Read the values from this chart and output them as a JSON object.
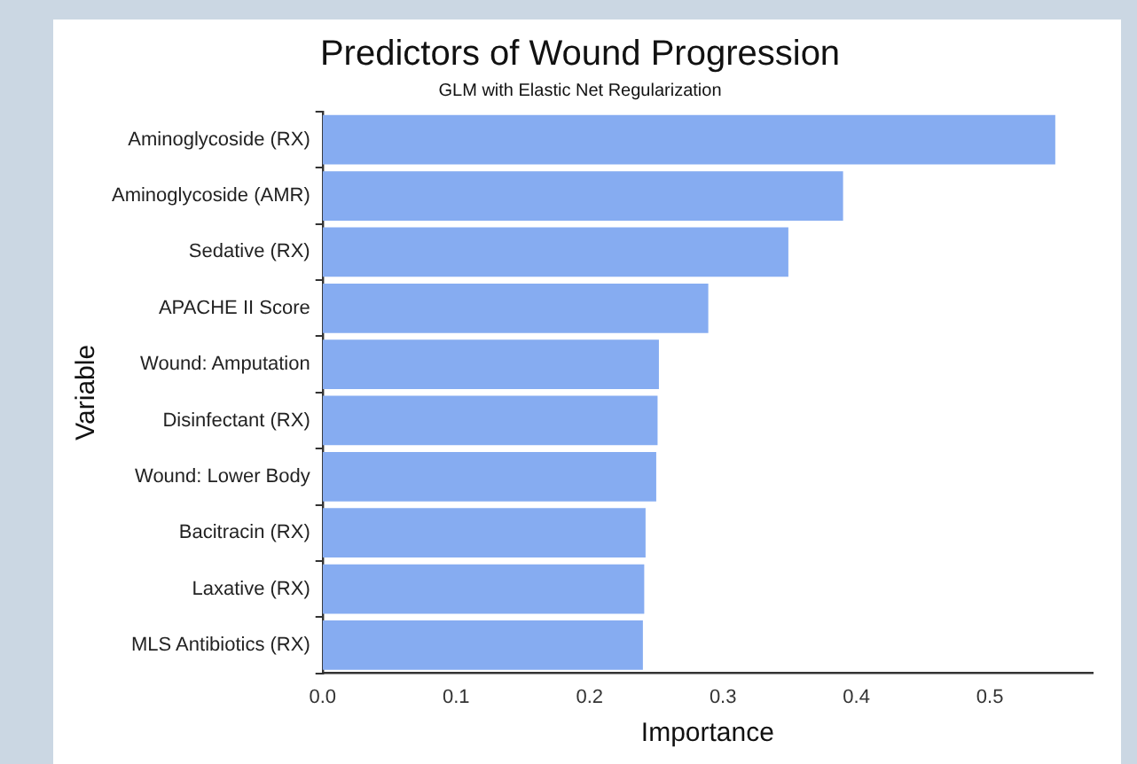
{
  "chart_data": {
    "type": "bar",
    "orientation": "horizontal",
    "title": "Predictors of Wound Progression",
    "subtitle": "GLM with Elastic Net Regularization",
    "xlabel": "Importance",
    "ylabel": "Variable",
    "categories": [
      "Aminoglycoside (RX)",
      "Aminoglycoside (AMR)",
      "Sedative (RX)",
      "APACHE II Score",
      "Wound: Amputation",
      "Disinfectant (RX)",
      "Wound: Lower Body",
      "Bacitracin (RX)",
      "Laxative (RX)",
      "MLS Antibiotics (RX)"
    ],
    "values": [
      0.549,
      0.39,
      0.349,
      0.289,
      0.252,
      0.251,
      0.25,
      0.242,
      0.241,
      0.24
    ],
    "color": "#86acf1",
    "xlim": [
      0,
      0.577
    ],
    "xticks": [
      {
        "value": 0,
        "label": "0.0"
      },
      0.1,
      0.2,
      0.3,
      0.4,
      0.5
    ],
    "grid": false,
    "legend": false
  }
}
